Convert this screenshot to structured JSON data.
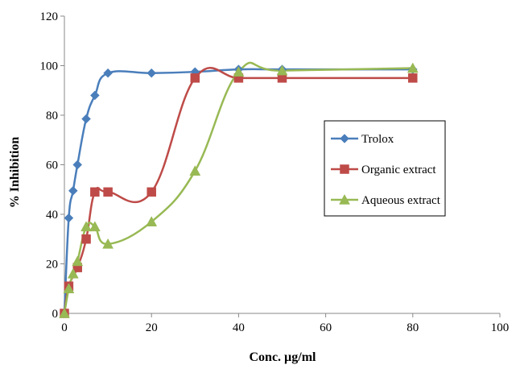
{
  "chart_data": {
    "type": "line",
    "title": "",
    "xlabel": "Conc. µg/ml",
    "ylabel": "% Inhibition",
    "xlim": [
      0,
      100
    ],
    "ylim": [
      0,
      120
    ],
    "x_ticks": [
      "0",
      "20",
      "40",
      "60",
      "80",
      "100"
    ],
    "y_ticks": [
      "0",
      "20",
      "40",
      "60",
      "80",
      "100",
      "120"
    ],
    "grid": false,
    "legend_position": "right",
    "smooth": true,
    "series": [
      {
        "name": "Trolox",
        "color": "#4a7ebb",
        "marker": "diamond",
        "x": [
          0,
          1,
          2,
          3,
          5,
          7,
          10,
          20,
          30,
          40,
          50,
          80
        ],
        "y": [
          0,
          38.5,
          49.5,
          60,
          78.5,
          88,
          97,
          97,
          97.5,
          98.5,
          98.5,
          98.5
        ]
      },
      {
        "name": "Organic extract",
        "color": "#be4b48",
        "marker": "square",
        "x": [
          0,
          1,
          3,
          5,
          7,
          10,
          20,
          30,
          40,
          50,
          80
        ],
        "y": [
          0,
          11,
          18.5,
          30,
          49,
          49,
          49,
          95,
          95,
          95,
          95
        ]
      },
      {
        "name": "Aqueous extract",
        "color": "#98b954",
        "marker": "triangle",
        "x": [
          0,
          1,
          2,
          3,
          5,
          7,
          10,
          20,
          30,
          40,
          50,
          80
        ],
        "y": [
          0,
          10,
          16,
          21,
          35,
          35,
          28,
          37,
          57.5,
          97.5,
          98,
          99
        ]
      }
    ]
  }
}
